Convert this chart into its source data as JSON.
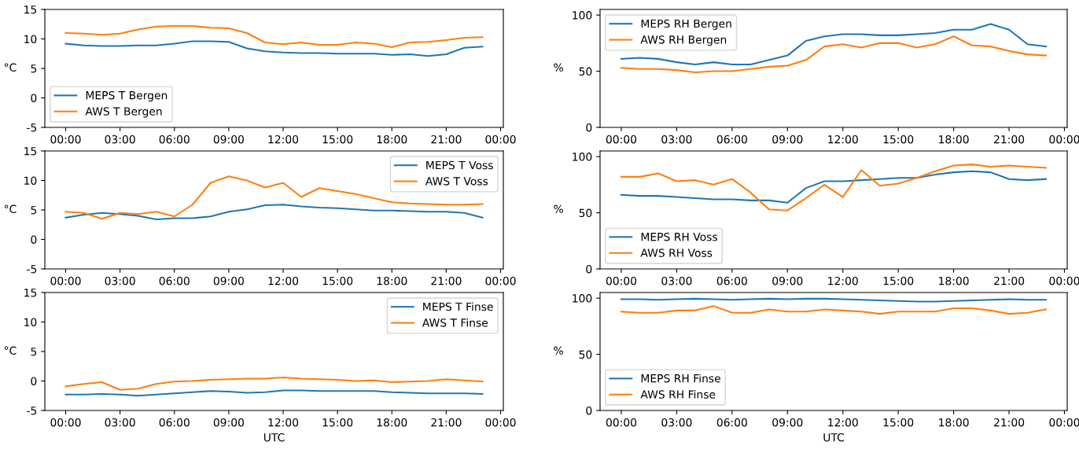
{
  "chart_data": [
    {
      "type": "line",
      "ylabel": "°C",
      "x": [
        0,
        1,
        2,
        3,
        4,
        5,
        6,
        7,
        8,
        9,
        10,
        11,
        12,
        13,
        14,
        15,
        16,
        17,
        18,
        19,
        20,
        21,
        22,
        23
      ],
      "xlim": [
        -1.15,
        24.15
      ],
      "xticks": [
        {
          "value": 0,
          "label": "00:00"
        },
        {
          "value": 3,
          "label": "03:00"
        },
        {
          "value": 6,
          "label": "06:00"
        },
        {
          "value": 9,
          "label": "09:00"
        },
        {
          "value": 12,
          "label": "12:00"
        },
        {
          "value": 15,
          "label": "15:00"
        },
        {
          "value": 18,
          "label": "18:00"
        },
        {
          "value": 21,
          "label": "21:00"
        },
        {
          "value": 24,
          "label": "00:00"
        }
      ],
      "ylim": [
        -5,
        15
      ],
      "yticks": [
        -5,
        0,
        5,
        10,
        15
      ],
      "legend": "lower left",
      "grid": false,
      "series": [
        {
          "name": "MEPS T Bergen",
          "color": "#1f77b4",
          "values": [
            9.2,
            8.9,
            8.8,
            8.8,
            8.9,
            8.9,
            9.2,
            9.6,
            9.6,
            9.5,
            8.4,
            7.9,
            7.7,
            7.6,
            7.6,
            7.5,
            7.5,
            7.5,
            7.3,
            7.4,
            7.1,
            7.4,
            8.5,
            8.7
          ]
        },
        {
          "name": "AWS T Bergen",
          "color": "#ff7f0e",
          "values": [
            11.0,
            10.9,
            10.7,
            10.9,
            11.6,
            12.1,
            12.2,
            12.2,
            11.9,
            11.8,
            11.0,
            9.4,
            9.1,
            9.4,
            9.0,
            9.0,
            9.4,
            9.2,
            8.6,
            9.4,
            9.5,
            9.8,
            10.2,
            10.3
          ]
        }
      ]
    },
    {
      "type": "line",
      "ylabel": "%",
      "x": [
        0,
        1,
        2,
        3,
        4,
        5,
        6,
        7,
        8,
        9,
        10,
        11,
        12,
        13,
        14,
        15,
        16,
        17,
        18,
        19,
        20,
        21,
        22,
        23
      ],
      "xlim": [
        -1.15,
        24.15
      ],
      "xticks": [
        {
          "value": 0,
          "label": "00:00"
        },
        {
          "value": 3,
          "label": "03:00"
        },
        {
          "value": 6,
          "label": "06:00"
        },
        {
          "value": 9,
          "label": "09:00"
        },
        {
          "value": 12,
          "label": "12:00"
        },
        {
          "value": 15,
          "label": "15:00"
        },
        {
          "value": 18,
          "label": "18:00"
        },
        {
          "value": 21,
          "label": "21:00"
        },
        {
          "value": 24,
          "label": "00:00"
        }
      ],
      "ylim": [
        0,
        105
      ],
      "yticks": [
        0,
        50,
        100
      ],
      "legend": "upper left",
      "grid": false,
      "series": [
        {
          "name": "MEPS RH Bergen",
          "color": "#1f77b4",
          "values": [
            61,
            62,
            61,
            58,
            56,
            58,
            56,
            56,
            60,
            64,
            77,
            81,
            83,
            83,
            82,
            82,
            83,
            84,
            87,
            87,
            92,
            87,
            74,
            72
          ]
        },
        {
          "name": "AWS RH Bergen",
          "color": "#ff7f0e",
          "values": [
            53,
            52,
            52,
            51,
            49,
            50,
            50,
            52,
            54,
            55,
            60,
            72,
            74,
            71,
            75,
            75,
            71,
            74,
            81,
            73,
            72,
            68,
            65,
            64
          ]
        }
      ]
    },
    {
      "type": "line",
      "ylabel": "°C",
      "x": [
        0,
        1,
        2,
        3,
        4,
        5,
        6,
        7,
        8,
        9,
        10,
        11,
        12,
        13,
        14,
        15,
        16,
        17,
        18,
        19,
        20,
        21,
        22,
        23
      ],
      "xlim": [
        -1.15,
        24.15
      ],
      "xticks": [
        {
          "value": 0,
          "label": "00:00"
        },
        {
          "value": 3,
          "label": "03:00"
        },
        {
          "value": 6,
          "label": "06:00"
        },
        {
          "value": 9,
          "label": "09:00"
        },
        {
          "value": 12,
          "label": "12:00"
        },
        {
          "value": 15,
          "label": "15:00"
        },
        {
          "value": 18,
          "label": "18:00"
        },
        {
          "value": 21,
          "label": "21:00"
        },
        {
          "value": 24,
          "label": "00:00"
        }
      ],
      "ylim": [
        -5,
        15
      ],
      "yticks": [
        -5,
        0,
        5,
        10,
        15
      ],
      "legend": "upper right",
      "grid": false,
      "series": [
        {
          "name": "MEPS T Voss",
          "color": "#1f77b4",
          "values": [
            3.7,
            4.2,
            4.5,
            4.3,
            4.0,
            3.4,
            3.6,
            3.6,
            3.9,
            4.7,
            5.1,
            5.8,
            5.9,
            5.6,
            5.4,
            5.3,
            5.1,
            4.9,
            4.9,
            4.8,
            4.7,
            4.7,
            4.5,
            3.7
          ]
        },
        {
          "name": "AWS T Voss",
          "color": "#ff7f0e",
          "values": [
            4.7,
            4.5,
            3.5,
            4.5,
            4.3,
            4.7,
            3.9,
            5.9,
            9.6,
            10.7,
            10.0,
            8.8,
            9.6,
            7.2,
            8.7,
            8.2,
            7.7,
            7.0,
            6.3,
            6.1,
            6.0,
            5.9,
            5.9,
            6.0
          ]
        }
      ]
    },
    {
      "type": "line",
      "ylabel": "%",
      "x": [
        0,
        1,
        2,
        3,
        4,
        5,
        6,
        7,
        8,
        9,
        10,
        11,
        12,
        13,
        14,
        15,
        16,
        17,
        18,
        19,
        20,
        21,
        22,
        23
      ],
      "xlim": [
        -1.15,
        24.15
      ],
      "xticks": [
        {
          "value": 0,
          "label": "00:00"
        },
        {
          "value": 3,
          "label": "03:00"
        },
        {
          "value": 6,
          "label": "06:00"
        },
        {
          "value": 9,
          "label": "09:00"
        },
        {
          "value": 12,
          "label": "12:00"
        },
        {
          "value": 15,
          "label": "15:00"
        },
        {
          "value": 18,
          "label": "18:00"
        },
        {
          "value": 21,
          "label": "21:00"
        },
        {
          "value": 24,
          "label": "00:00"
        }
      ],
      "ylim": [
        0,
        105
      ],
      "yticks": [
        0,
        50,
        100
      ],
      "legend": "lower left",
      "grid": false,
      "series": [
        {
          "name": "MEPS RH Voss",
          "color": "#1f77b4",
          "values": [
            66,
            65,
            65,
            64,
            63,
            62,
            62,
            61,
            61,
            59,
            72,
            78,
            78,
            79,
            80,
            81,
            81,
            84,
            86,
            87,
            86,
            80,
            79,
            80
          ]
        },
        {
          "name": "AWS RH Voss",
          "color": "#ff7f0e",
          "values": [
            82,
            82,
            85,
            78,
            79,
            75,
            80,
            68,
            53,
            52,
            63,
            75,
            64,
            88,
            74,
            76,
            81,
            87,
            92,
            93,
            91,
            92,
            91,
            90
          ]
        }
      ]
    },
    {
      "type": "line",
      "ylabel": "°C",
      "xlabel": "UTC",
      "x": [
        0,
        1,
        2,
        3,
        4,
        5,
        6,
        7,
        8,
        9,
        10,
        11,
        12,
        13,
        14,
        15,
        16,
        17,
        18,
        19,
        20,
        21,
        22,
        23
      ],
      "xlim": [
        -1.15,
        24.15
      ],
      "xticks": [
        {
          "value": 0,
          "label": "00:00"
        },
        {
          "value": 3,
          "label": "03:00"
        },
        {
          "value": 6,
          "label": "06:00"
        },
        {
          "value": 9,
          "label": "09:00"
        },
        {
          "value": 12,
          "label": "12:00"
        },
        {
          "value": 15,
          "label": "15:00"
        },
        {
          "value": 18,
          "label": "18:00"
        },
        {
          "value": 21,
          "label": "21:00"
        },
        {
          "value": 24,
          "label": "00:00"
        }
      ],
      "ylim": [
        -5,
        15
      ],
      "yticks": [
        -5,
        0,
        5,
        10,
        15
      ],
      "legend": "upper right",
      "grid": false,
      "series": [
        {
          "name": "MEPS T Finse",
          "color": "#1f77b4",
          "values": [
            -2.3,
            -2.3,
            -2.2,
            -2.3,
            -2.5,
            -2.3,
            -2.1,
            -1.9,
            -1.7,
            -1.8,
            -2.0,
            -1.9,
            -1.6,
            -1.6,
            -1.7,
            -1.7,
            -1.7,
            -1.7,
            -1.9,
            -2.0,
            -2.1,
            -2.1,
            -2.1,
            -2.2
          ]
        },
        {
          "name": "AWS T Finse",
          "color": "#ff7f0e",
          "values": [
            -0.9,
            -0.5,
            -0.2,
            -1.5,
            -1.3,
            -0.5,
            -0.1,
            0.0,
            0.2,
            0.3,
            0.4,
            0.4,
            0.6,
            0.4,
            0.3,
            0.2,
            0.0,
            0.1,
            -0.2,
            -0.1,
            0.0,
            0.3,
            0.1,
            -0.1
          ]
        }
      ]
    },
    {
      "type": "line",
      "ylabel": "%",
      "xlabel": "UTC",
      "x": [
        0,
        1,
        2,
        3,
        4,
        5,
        6,
        7,
        8,
        9,
        10,
        11,
        12,
        13,
        14,
        15,
        16,
        17,
        18,
        19,
        20,
        21,
        22,
        23
      ],
      "xlim": [
        -1.15,
        24.15
      ],
      "xticks": [
        {
          "value": 0,
          "label": "00:00"
        },
        {
          "value": 3,
          "label": "03:00"
        },
        {
          "value": 6,
          "label": "06:00"
        },
        {
          "value": 9,
          "label": "09:00"
        },
        {
          "value": 12,
          "label": "12:00"
        },
        {
          "value": 15,
          "label": "15:00"
        },
        {
          "value": 18,
          "label": "18:00"
        },
        {
          "value": 21,
          "label": "21:00"
        },
        {
          "value": 24,
          "label": "00:00"
        }
      ],
      "ylim": [
        0,
        105
      ],
      "yticks": [
        0,
        50,
        100
      ],
      "legend": "lower left",
      "grid": false,
      "series": [
        {
          "name": "MEPS RH Finse",
          "color": "#1f77b4",
          "values": [
            99,
            99,
            98.5,
            99,
            99.5,
            99,
            98.5,
            99,
            99.5,
            99,
            99.5,
            99.5,
            99,
            98.5,
            98,
            97.5,
            97,
            97,
            97.5,
            98,
            98.5,
            99,
            98.5,
            98.5
          ]
        },
        {
          "name": "AWS RH Finse",
          "color": "#ff7f0e",
          "values": [
            88,
            87,
            87,
            89,
            89,
            93,
            87,
            87,
            90,
            88,
            88,
            90,
            89,
            88,
            86,
            88,
            88,
            88,
            91,
            91,
            89,
            86,
            87,
            90
          ]
        }
      ]
    }
  ]
}
